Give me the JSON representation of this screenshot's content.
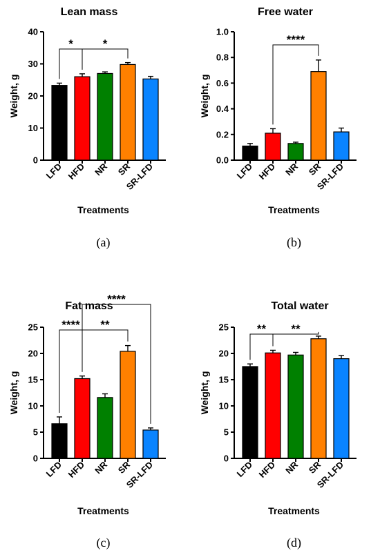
{
  "colors": {
    "LFD": "#000000",
    "HFD": "#ff0000",
    "NR": "#008000",
    "SR": "#ff8000",
    "SR-LFD": "#0a84ff"
  },
  "chart_data": [
    {
      "panel_label": "(a)",
      "type": "bar",
      "title": "Lean mass",
      "xlabel": "Treatments",
      "ylabel": "Weight, g",
      "ylim": [
        0,
        40
      ],
      "yticks": [
        "0",
        "10",
        "20",
        "30",
        "40"
      ],
      "categories": [
        "LFD",
        "HFD",
        "NR",
        "SR",
        "SR-LFD"
      ],
      "values": [
        23.3,
        26.0,
        27.0,
        29.8,
        25.3
      ],
      "errors": [
        0.7,
        0.9,
        0.5,
        0.6,
        0.8
      ],
      "significance": [
        {
          "from": "LFD",
          "to": "HFD",
          "label": "*"
        },
        {
          "from": "HFD",
          "to": "SR",
          "label": "*"
        }
      ]
    },
    {
      "panel_label": "(b)",
      "type": "bar",
      "title": "Free water",
      "xlabel": "Treatments",
      "ylabel": "Weight, g",
      "ylim": [
        0,
        1.0
      ],
      "yticks": [
        "0.0",
        "0.2",
        "0.4",
        "0.6",
        "0.8",
        "1.0"
      ],
      "categories": [
        "LFD",
        "HFD",
        "NR",
        "SR",
        "SR-LFD"
      ],
      "values": [
        0.11,
        0.21,
        0.13,
        0.69,
        0.22
      ],
      "errors": [
        0.02,
        0.035,
        0.01,
        0.09,
        0.03
      ],
      "significance": [
        {
          "from": "HFD",
          "to": "SR",
          "label": "****"
        }
      ]
    },
    {
      "panel_label": "(c)",
      "type": "bar",
      "title": "Fat mass",
      "xlabel": "Treatments",
      "ylabel": "Weight, g",
      "ylim": [
        0,
        25
      ],
      "yticks": [
        "0",
        "5",
        "10",
        "15",
        "20",
        "25"
      ],
      "categories": [
        "LFD",
        "HFD",
        "NR",
        "SR",
        "SR-LFD"
      ],
      "values": [
        6.6,
        15.2,
        11.6,
        20.4,
        5.4
      ],
      "errors": [
        1.3,
        0.5,
        0.7,
        1.1,
        0.4
      ],
      "significance": [
        {
          "from": "LFD",
          "to": "HFD",
          "label": "****"
        },
        {
          "from": "HFD",
          "to": "SR",
          "label": "**"
        },
        {
          "from": "HFD",
          "to": "SR-LFD",
          "label": "****"
        }
      ]
    },
    {
      "panel_label": "(d)",
      "type": "bar",
      "title": "Total water",
      "xlabel": "Treatments",
      "ylabel": "Weight, g",
      "ylim": [
        0,
        25
      ],
      "yticks": [
        "0",
        "5",
        "10",
        "15",
        "20",
        "25"
      ],
      "categories": [
        "LFD",
        "HFD",
        "NR",
        "SR",
        "SR-LFD"
      ],
      "values": [
        17.5,
        20.1,
        19.7,
        22.8,
        19.0
      ],
      "errors": [
        0.5,
        0.5,
        0.5,
        0.5,
        0.6
      ],
      "significance": [
        {
          "from": "LFD",
          "to": "HFD",
          "label": "**"
        },
        {
          "from": "HFD",
          "to": "SR",
          "label": "**"
        }
      ]
    }
  ]
}
